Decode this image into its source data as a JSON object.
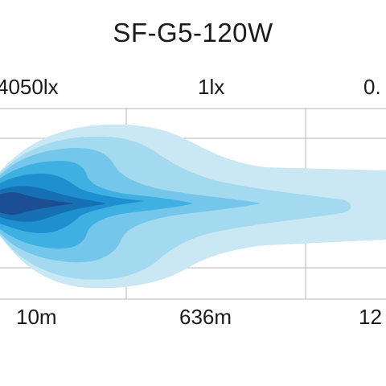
{
  "chart_data": {
    "type": "heatmap",
    "title": "SF-G5-120W",
    "lux_labels": [
      "4050lx",
      "1lx",
      "0."
    ],
    "distance_labels": [
      "10m",
      "636m",
      "12"
    ],
    "grid": true,
    "colors": {
      "contour_1": "#c9e8f3",
      "contour_2": "#a3daef",
      "contour_3": "#74c6ea",
      "contour_4": "#3eb0e2",
      "contour_5": "#1e8fcf",
      "contour_6": "#176fb4",
      "contour_7": "#1b4e92",
      "grid_line": "#b7b7b7"
    }
  }
}
